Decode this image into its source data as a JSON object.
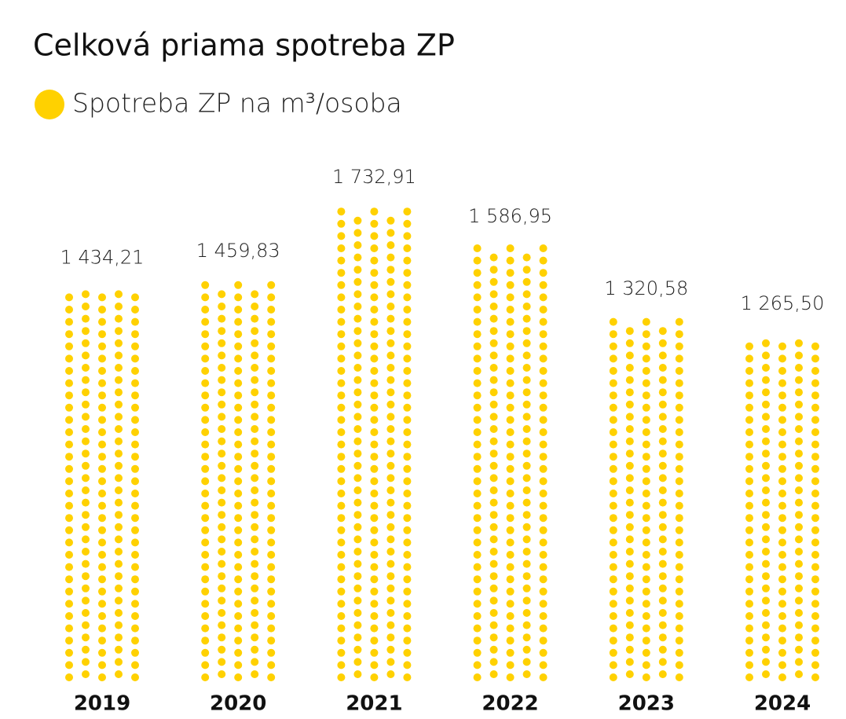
{
  "chart_data": {
    "type": "bar",
    "title": "Celková priama spotreba ZP",
    "categories": [
      "2019",
      "2020",
      "2021",
      "2022",
      "2023",
      "2024"
    ],
    "series": [
      {
        "name": "Spotreba ZP na m³/osoba",
        "color": "#ffd100",
        "values": [
          1434.21,
          1459.83,
          1732.91,
          1586.95,
          1320.58,
          1265.5
        ],
        "value_labels": [
          "1 434,21",
          "1 459,83",
          "1 732,91",
          "1 586,95",
          "1 320,58",
          "1 265,50"
        ]
      }
    ]
  }
}
